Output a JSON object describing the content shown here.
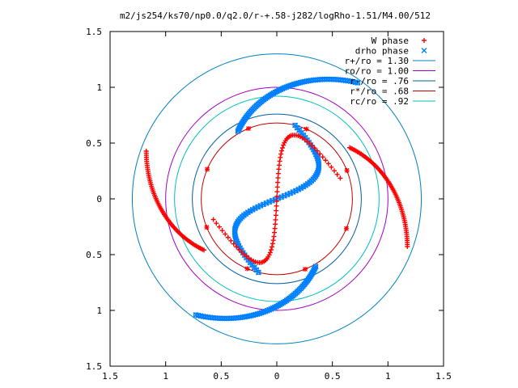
{
  "chart_data": {
    "type": "scatter",
    "title": "m2/js254/ks70/np0.0/q2.0/r-+.58-j282/logRho-1.51/M4.00/512",
    "xlim": [
      -1.5,
      1.5
    ],
    "ylim": [
      -1.5,
      1.5
    ],
    "x_ticks": [
      -1.5,
      -1,
      -0.5,
      0,
      0.5,
      1,
      1.5
    ],
    "y_ticks": [
      1.5,
      1,
      0.5,
      0,
      -0.5,
      -1,
      -1.5
    ],
    "x_tick_labels": [
      "1.5",
      "1",
      "0.5",
      "0",
      "0.5",
      "1",
      "1.5"
    ],
    "y_tick_labels": [
      "1.5",
      "1",
      "0.5",
      "0",
      "0.5",
      "1",
      "1.5"
    ],
    "grid": false,
    "legend_position": "top-right",
    "series": [
      {
        "name": "W phase",
        "marker": "plus",
        "color": "#ff0000",
        "description": "two trailing spiral arms plus inner S-shaped bar"
      },
      {
        "name": "drho phase",
        "marker": "cross-square",
        "color": "#0080ff",
        "description": "two trailing spiral arms plus inner S-shaped bar"
      }
    ],
    "circles": [
      {
        "name": "r+/ro = 1.30",
        "r": 1.3,
        "color": "#0080c0"
      },
      {
        "name": "ro/ro = 1.00",
        "r": 1.0,
        "color": "#a000c0"
      },
      {
        "name": "r-/ro = .76",
        "r": 0.76,
        "color": "#0060a0"
      },
      {
        "name": "r*/ro = .68",
        "r": 0.68,
        "color": "#c00000"
      },
      {
        "name": "rc/ro = .92",
        "r": 0.92,
        "color": "#00c0c0"
      }
    ],
    "circle_markers": {
      "on_circle": "r*/ro = .68",
      "marker": "star",
      "color": "#ff0000",
      "count": 8
    }
  }
}
